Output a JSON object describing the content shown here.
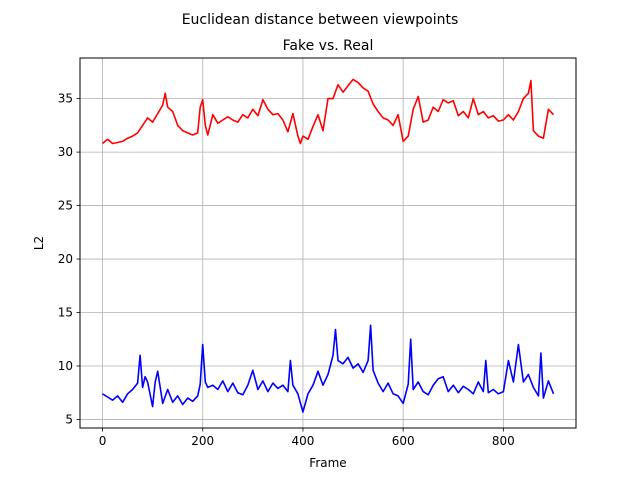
{
  "chart_data": {
    "type": "line",
    "suptitle": "Euclidean distance between viewpoints",
    "title": "Fake vs. Real",
    "xlabel": "Frame",
    "ylabel": "L2",
    "xlim": [
      -45,
      945
    ],
    "ylim": [
      4.2,
      38.8
    ],
    "xticks": [
      0,
      200,
      400,
      600,
      800
    ],
    "yticks": [
      5,
      10,
      15,
      20,
      25,
      30,
      35
    ],
    "grid": true,
    "series": [
      {
        "color": "#ff0000",
        "x": [
          0,
          10,
          20,
          30,
          40,
          50,
          60,
          70,
          80,
          90,
          100,
          110,
          120,
          125,
          130,
          140,
          150,
          160,
          170,
          180,
          190,
          195,
          200,
          205,
          210,
          220,
          230,
          240,
          250,
          260,
          270,
          280,
          290,
          300,
          310,
          320,
          330,
          340,
          350,
          360,
          370,
          380,
          390,
          395,
          400,
          410,
          420,
          430,
          440,
          450,
          460,
          470,
          480,
          490,
          500,
          510,
          520,
          530,
          540,
          550,
          560,
          570,
          580,
          590,
          600,
          610,
          620,
          630,
          640,
          650,
          660,
          670,
          680,
          690,
          700,
          710,
          720,
          730,
          740,
          750,
          760,
          770,
          780,
          790,
          800,
          810,
          820,
          830,
          840,
          850,
          855,
          860,
          870,
          880,
          890,
          900
        ],
        "y": [
          30.8,
          31.2,
          30.8,
          30.9,
          31.0,
          31.3,
          31.5,
          31.8,
          32.5,
          33.2,
          32.8,
          33.6,
          34.4,
          35.5,
          34.2,
          33.8,
          32.5,
          32.0,
          31.8,
          31.6,
          31.8,
          34.2,
          34.9,
          32.5,
          31.6,
          33.5,
          32.7,
          33.0,
          33.3,
          33.0,
          32.8,
          33.5,
          33.2,
          34.0,
          33.4,
          34.9,
          34.0,
          33.5,
          33.6,
          33.0,
          31.9,
          33.6,
          31.5,
          30.8,
          31.5,
          31.2,
          32.4,
          33.5,
          32.0,
          35.0,
          35.0,
          36.3,
          35.6,
          36.2,
          36.8,
          36.5,
          36.0,
          35.7,
          34.5,
          33.8,
          33.2,
          33.0,
          32.5,
          33.5,
          31.0,
          31.5,
          34.0,
          35.2,
          32.8,
          33.0,
          34.2,
          33.8,
          34.9,
          34.6,
          34.8,
          33.4,
          33.8,
          33.2,
          35.0,
          33.5,
          33.8,
          33.2,
          33.4,
          32.9,
          33.0,
          33.5,
          33.0,
          33.8,
          35.0,
          35.5,
          36.7,
          32.0,
          31.5,
          31.3,
          34.0,
          33.5
        ]
      },
      {
        "color": "#0000ff",
        "x": [
          0,
          10,
          20,
          30,
          40,
          50,
          60,
          70,
          75,
          80,
          85,
          90,
          100,
          105,
          110,
          120,
          130,
          140,
          150,
          160,
          170,
          180,
          190,
          195,
          200,
          205,
          210,
          220,
          230,
          240,
          250,
          260,
          270,
          280,
          290,
          300,
          310,
          320,
          330,
          340,
          350,
          360,
          370,
          375,
          380,
          390,
          400,
          410,
          420,
          430,
          440,
          450,
          460,
          465,
          470,
          480,
          490,
          500,
          510,
          520,
          530,
          535,
          540,
          550,
          560,
          570,
          580,
          590,
          600,
          610,
          615,
          620,
          630,
          640,
          650,
          660,
          670,
          680,
          690,
          700,
          710,
          720,
          730,
          740,
          750,
          760,
          765,
          770,
          780,
          790,
          800,
          810,
          820,
          830,
          840,
          850,
          860,
          870,
          875,
          880,
          890,
          900
        ],
        "y": [
          7.4,
          7.1,
          6.8,
          7.2,
          6.6,
          7.4,
          7.8,
          8.4,
          11.0,
          8.0,
          9.0,
          8.5,
          6.2,
          8.5,
          9.5,
          6.5,
          7.8,
          6.6,
          7.2,
          6.4,
          7.0,
          6.7,
          7.2,
          8.3,
          12.0,
          8.5,
          8.0,
          8.2,
          7.8,
          8.6,
          7.6,
          8.4,
          7.5,
          7.3,
          8.2,
          9.6,
          7.8,
          8.6,
          7.6,
          8.4,
          7.9,
          8.2,
          7.6,
          10.5,
          8.2,
          7.4,
          5.7,
          7.4,
          8.2,
          9.5,
          8.2,
          9.2,
          11.0,
          13.4,
          10.5,
          10.2,
          10.8,
          9.8,
          10.2,
          9.4,
          10.5,
          13.8,
          9.6,
          8.4,
          7.6,
          8.4,
          7.4,
          7.2,
          6.5,
          8.3,
          12.5,
          7.8,
          8.5,
          7.6,
          7.3,
          8.2,
          8.8,
          9.0,
          7.6,
          8.2,
          7.5,
          8.1,
          7.8,
          7.4,
          8.5,
          7.6,
          10.5,
          7.5,
          7.8,
          7.4,
          7.6,
          10.5,
          8.5,
          12.0,
          8.5,
          9.2,
          8.0,
          7.2,
          11.2,
          7.0,
          8.6,
          7.4
        ]
      }
    ]
  }
}
